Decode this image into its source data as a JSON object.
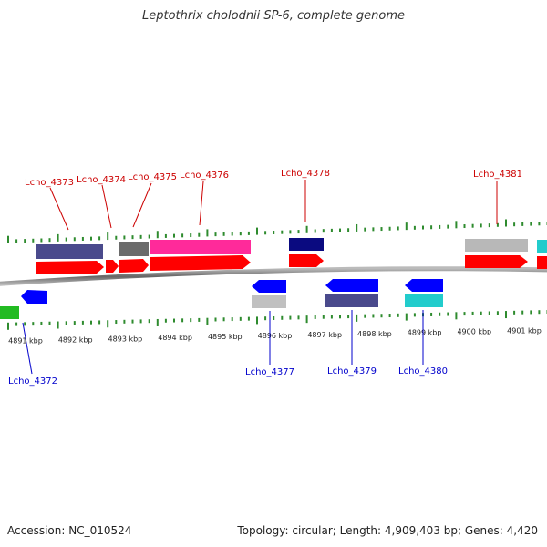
{
  "title": "Leptothrix cholodnii SP-6, complete genome",
  "footer": {
    "accession": "Accession: NC_010524",
    "topology": "Topology: circular; Length: 4,909,403 bp; Genes: 4,420"
  },
  "colors": {
    "forward_label": "#cc0000",
    "reverse_label": "#0000cc",
    "tick": "#2e8b2e",
    "backbone": "#888888"
  },
  "scale": {
    "ticks": [
      "4891 kbp",
      "4892 kbp",
      "4893 kbp",
      "4894 kbp",
      "4895 kbp",
      "4896 kbp",
      "4897 kbp",
      "4898 kbp",
      "4899 kbp",
      "4900 kbp",
      "4901 kbp"
    ]
  },
  "genes": [
    {
      "label": "Lcho_4373",
      "strand": "+",
      "feature_color": "#4a4a8c"
    },
    {
      "label": "Lcho_4374",
      "strand": "+",
      "feature_color": "#ff0000"
    },
    {
      "label": "Lcho_4375",
      "strand": "+",
      "feature_color": "#6b6b6b"
    },
    {
      "label": "Lcho_4376",
      "strand": "+",
      "feature_color": "#ff2a9a"
    },
    {
      "label": "Lcho_4378",
      "strand": "+",
      "feature_color": "#0a0a80"
    },
    {
      "label": "Lcho_4381",
      "strand": "+",
      "feature_color": "#b8b8b8"
    },
    {
      "label": "Lcho_4372",
      "strand": "-",
      "feature_color": "#22bb22"
    },
    {
      "label": "Lcho_4377",
      "strand": "-",
      "feature_color": "#c0c0c0"
    },
    {
      "label": "Lcho_4379",
      "strand": "-",
      "feature_color": "#4a4a8c"
    },
    {
      "label": "Lcho_4380",
      "strand": "-",
      "feature_color": "#22cccc"
    }
  ]
}
